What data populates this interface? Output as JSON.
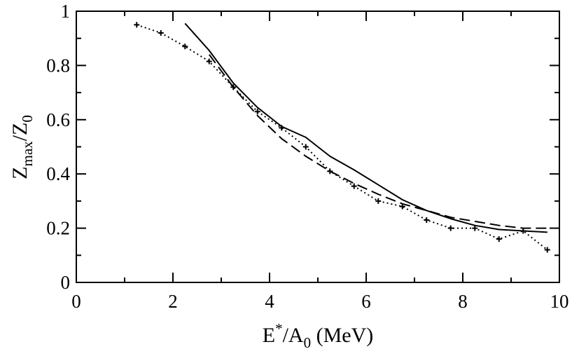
{
  "chart_data": {
    "type": "line",
    "xlabel": {
      "base": "E",
      "sup": "*",
      "mid": "/A",
      "sub": "0",
      "tail": " (MeV)"
    },
    "ylabel": {
      "base": "Z",
      "sub1": "max",
      "mid": "/Z",
      "sub2": "0"
    },
    "xlim": [
      0,
      10
    ],
    "ylim": [
      0,
      1
    ],
    "xticks": [
      "0",
      "2",
      "4",
      "6",
      "8",
      "10"
    ],
    "yticks": [
      "0",
      "0.2",
      "0.4",
      "0.6",
      "0.8",
      "1"
    ],
    "x_tick_values": [
      0,
      2,
      4,
      6,
      8,
      10
    ],
    "y_tick_values": [
      0,
      0.2,
      0.4,
      0.6,
      0.8,
      1
    ],
    "grid": false,
    "legend": "none",
    "series": [
      {
        "style": "solid",
        "color": "#000000",
        "x": [
          2.25,
          2.75,
          3.25,
          3.75,
          4.25,
          4.75,
          5.25,
          5.75,
          6.25,
          6.75,
          7.25,
          7.75,
          8.25,
          8.75,
          9.25,
          9.75
        ],
        "y": [
          0.955,
          0.855,
          0.735,
          0.645,
          0.575,
          0.535,
          0.465,
          0.415,
          0.36,
          0.305,
          0.265,
          0.235,
          0.21,
          0.195,
          0.19,
          0.185
        ]
      },
      {
        "style": "dashed",
        "color": "#000000",
        "x": [
          2.75,
          3.25,
          3.75,
          4.25,
          4.75,
          5.25,
          5.75,
          6.25,
          6.75,
          7.25,
          7.75,
          8.25,
          8.75,
          9.25,
          9.75
        ],
        "y": [
          0.84,
          0.72,
          0.615,
          0.53,
          0.465,
          0.41,
          0.365,
          0.325,
          0.29,
          0.265,
          0.24,
          0.225,
          0.21,
          0.2,
          0.2
        ]
      },
      {
        "style": "dotted-markers",
        "marker": "+",
        "color": "#000000",
        "x": [
          1.25,
          1.75,
          2.25,
          2.75,
          3.25,
          3.75,
          4.25,
          4.75,
          5.25,
          5.75,
          6.25,
          6.75,
          7.25,
          7.75,
          8.25,
          8.75,
          9.25,
          9.75
        ],
        "y": [
          0.95,
          0.92,
          0.87,
          0.815,
          0.72,
          0.63,
          0.57,
          0.5,
          0.41,
          0.355,
          0.3,
          0.28,
          0.23,
          0.2,
          0.2,
          0.16,
          0.19,
          0.12
        ]
      }
    ]
  }
}
